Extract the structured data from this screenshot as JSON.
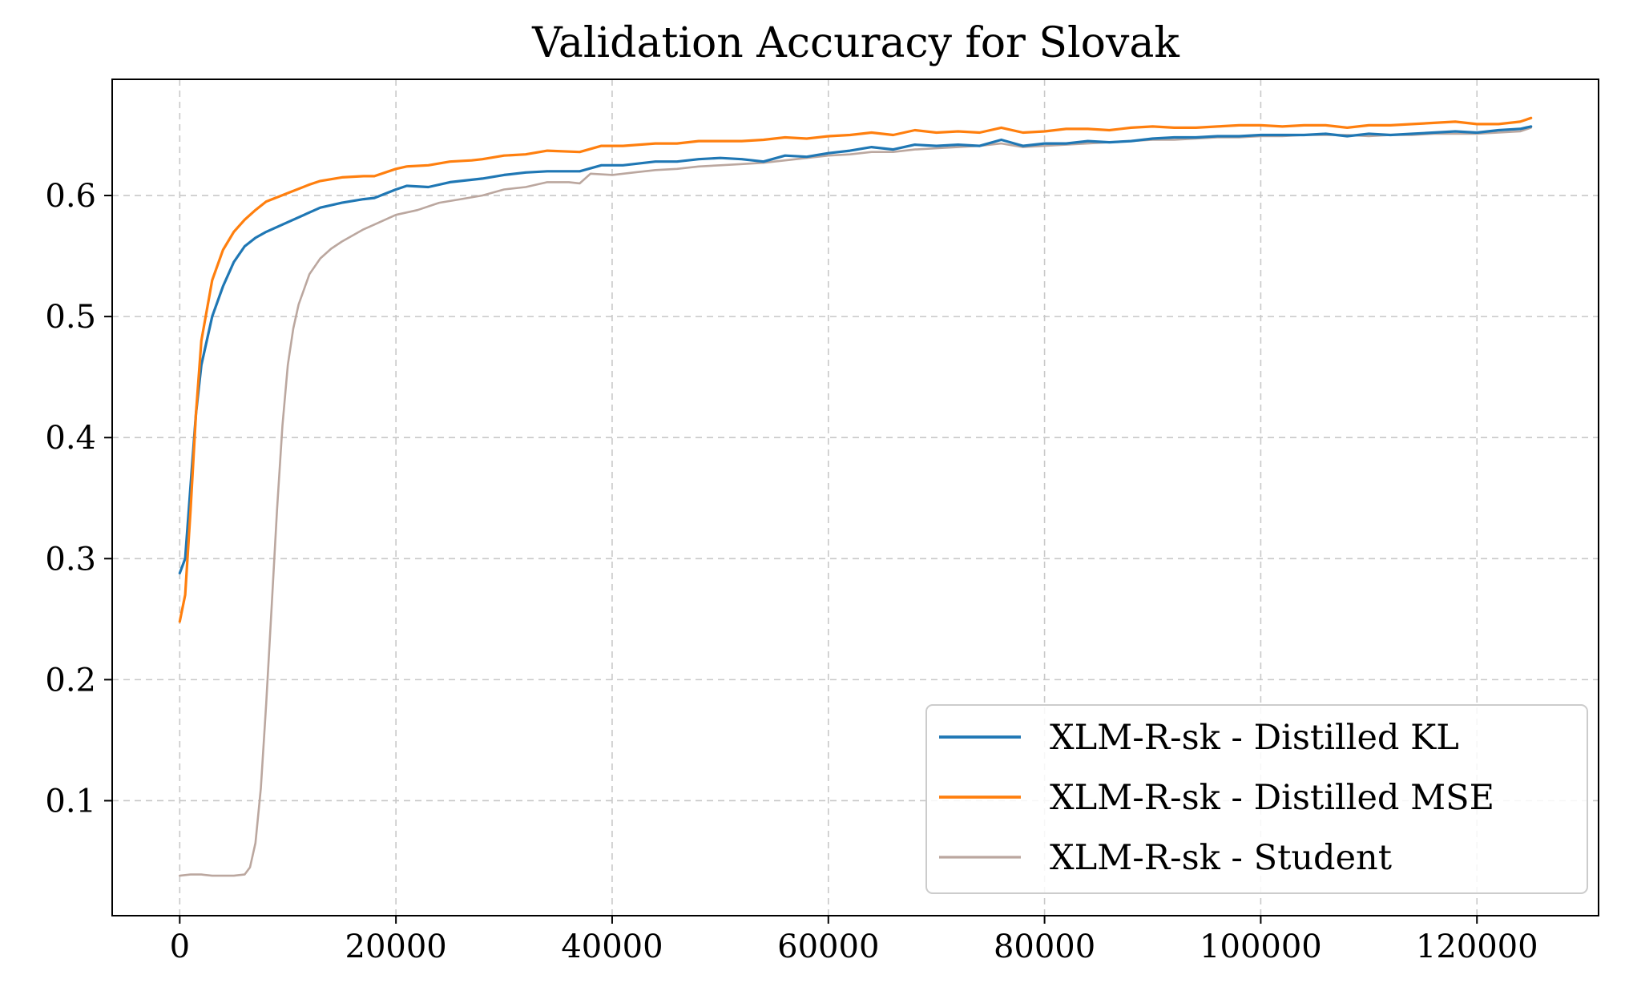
{
  "chart_data": {
    "type": "line",
    "title": "Validation Accuracy for Slovak",
    "xlabel": "",
    "ylabel": "",
    "xlim": [
      -6250,
      131250
    ],
    "ylim": [
      0.005,
      0.696
    ],
    "grid": true,
    "legend_position": "lower-right",
    "x_ticks": [
      {
        "value": 0,
        "label": "0"
      },
      {
        "value": 20000,
        "label": "20000"
      },
      {
        "value": 40000,
        "label": "40000"
      },
      {
        "value": 60000,
        "label": "60000"
      },
      {
        "value": 80000,
        "label": "80000"
      },
      {
        "value": 100000,
        "label": "100000"
      },
      {
        "value": 120000,
        "label": "120000"
      }
    ],
    "y_ticks": [
      {
        "value": 0.1,
        "label": "0.1"
      },
      {
        "value": 0.2,
        "label": "0.2"
      },
      {
        "value": 0.3,
        "label": "0.3"
      },
      {
        "value": 0.4,
        "label": "0.4"
      },
      {
        "value": 0.5,
        "label": "0.5"
      },
      {
        "value": 0.6,
        "label": "0.6"
      }
    ],
    "series": [
      {
        "name": "XLM-R-sk - Distilled KL",
        "color": "#1f77b4",
        "width": 3.2,
        "x": [
          0,
          500,
          1000,
          1500,
          2000,
          3000,
          4000,
          5000,
          6000,
          7000,
          8000,
          10000,
          12000,
          13000,
          15000,
          17000,
          18000,
          20000,
          21000,
          23000,
          25000,
          27000,
          28000,
          30000,
          32000,
          34000,
          37000,
          39000,
          41000,
          44000,
          46000,
          48000,
          50000,
          52000,
          54000,
          56000,
          58000,
          60000,
          62000,
          64000,
          66000,
          68000,
          70000,
          72000,
          74000,
          76000,
          78000,
          80000,
          82000,
          84000,
          86000,
          88000,
          90000,
          92000,
          94000,
          96000,
          98000,
          100000,
          102000,
          104000,
          106000,
          108000,
          110000,
          112000,
          114000,
          116000,
          118000,
          120000,
          122000,
          124000,
          125000
        ],
        "y": [
          0.288,
          0.3,
          0.36,
          0.42,
          0.46,
          0.5,
          0.525,
          0.545,
          0.558,
          0.565,
          0.57,
          0.578,
          0.586,
          0.59,
          0.594,
          0.597,
          0.598,
          0.605,
          0.608,
          0.607,
          0.611,
          0.613,
          0.614,
          0.617,
          0.619,
          0.62,
          0.62,
          0.625,
          0.625,
          0.628,
          0.628,
          0.63,
          0.631,
          0.63,
          0.628,
          0.633,
          0.632,
          0.635,
          0.637,
          0.64,
          0.638,
          0.642,
          0.641,
          0.642,
          0.641,
          0.646,
          0.641,
          0.643,
          0.643,
          0.645,
          0.644,
          0.645,
          0.647,
          0.648,
          0.648,
          0.649,
          0.649,
          0.65,
          0.65,
          0.65,
          0.651,
          0.649,
          0.651,
          0.65,
          0.651,
          0.652,
          0.653,
          0.652,
          0.654,
          0.655,
          0.657
        ]
      },
      {
        "name": "XLM-R-sk - Distilled MSE",
        "color": "#ff7f0e",
        "width": 3.2,
        "x": [
          0,
          500,
          1000,
          1500,
          2000,
          3000,
          4000,
          5000,
          6000,
          7000,
          8000,
          10000,
          12000,
          13000,
          15000,
          17000,
          18000,
          20000,
          21000,
          23000,
          25000,
          27000,
          28000,
          30000,
          32000,
          34000,
          37000,
          39000,
          41000,
          44000,
          46000,
          48000,
          50000,
          52000,
          54000,
          56000,
          58000,
          60000,
          62000,
          64000,
          66000,
          68000,
          70000,
          72000,
          74000,
          76000,
          78000,
          80000,
          82000,
          84000,
          86000,
          88000,
          90000,
          92000,
          94000,
          96000,
          98000,
          100000,
          102000,
          104000,
          106000,
          108000,
          110000,
          112000,
          114000,
          116000,
          118000,
          120000,
          122000,
          124000,
          125000
        ],
        "y": [
          0.248,
          0.27,
          0.34,
          0.42,
          0.48,
          0.53,
          0.555,
          0.57,
          0.58,
          0.588,
          0.595,
          0.602,
          0.609,
          0.612,
          0.615,
          0.616,
          0.616,
          0.622,
          0.624,
          0.625,
          0.628,
          0.629,
          0.63,
          0.633,
          0.634,
          0.637,
          0.636,
          0.641,
          0.641,
          0.643,
          0.643,
          0.645,
          0.645,
          0.645,
          0.646,
          0.648,
          0.647,
          0.649,
          0.65,
          0.652,
          0.65,
          0.654,
          0.652,
          0.653,
          0.652,
          0.656,
          0.652,
          0.653,
          0.655,
          0.655,
          0.654,
          0.656,
          0.657,
          0.656,
          0.656,
          0.657,
          0.658,
          0.658,
          0.657,
          0.658,
          0.658,
          0.656,
          0.658,
          0.658,
          0.659,
          0.66,
          0.661,
          0.659,
          0.659,
          0.661,
          0.664
        ]
      },
      {
        "name": "XLM-R-sk - Student",
        "color": "#bba79f",
        "width": 2.6,
        "x": [
          0,
          1000,
          2000,
          3000,
          4000,
          5000,
          6000,
          6500,
          7000,
          7500,
          8000,
          8500,
          9000,
          9500,
          10000,
          10500,
          11000,
          12000,
          13000,
          14000,
          15000,
          17000,
          18000,
          20000,
          22000,
          24000,
          26000,
          28000,
          30000,
          32000,
          34000,
          36000,
          37000,
          38000,
          40000,
          42000,
          44000,
          46000,
          48000,
          50000,
          52000,
          54000,
          56000,
          58000,
          60000,
          62000,
          64000,
          66000,
          68000,
          70000,
          72000,
          74000,
          76000,
          78000,
          80000,
          82000,
          84000,
          86000,
          88000,
          90000,
          92000,
          94000,
          96000,
          98000,
          100000,
          102000,
          104000,
          106000,
          108000,
          110000,
          112000,
          114000,
          116000,
          118000,
          120000,
          122000,
          124000,
          125000
        ],
        "y": [
          0.038,
          0.039,
          0.039,
          0.038,
          0.038,
          0.038,
          0.039,
          0.045,
          0.065,
          0.11,
          0.18,
          0.26,
          0.34,
          0.41,
          0.46,
          0.49,
          0.51,
          0.535,
          0.548,
          0.556,
          0.562,
          0.572,
          0.576,
          0.584,
          0.588,
          0.594,
          0.597,
          0.6,
          0.605,
          0.607,
          0.611,
          0.611,
          0.61,
          0.618,
          0.617,
          0.619,
          0.621,
          0.622,
          0.624,
          0.625,
          0.626,
          0.627,
          0.629,
          0.631,
          0.633,
          0.634,
          0.636,
          0.636,
          0.638,
          0.639,
          0.64,
          0.641,
          0.643,
          0.64,
          0.641,
          0.642,
          0.643,
          0.644,
          0.645,
          0.646,
          0.646,
          0.647,
          0.648,
          0.648,
          0.649,
          0.649,
          0.65,
          0.65,
          0.65,
          0.649,
          0.65,
          0.65,
          0.651,
          0.651,
          0.651,
          0.652,
          0.653,
          0.656
        ]
      }
    ]
  }
}
